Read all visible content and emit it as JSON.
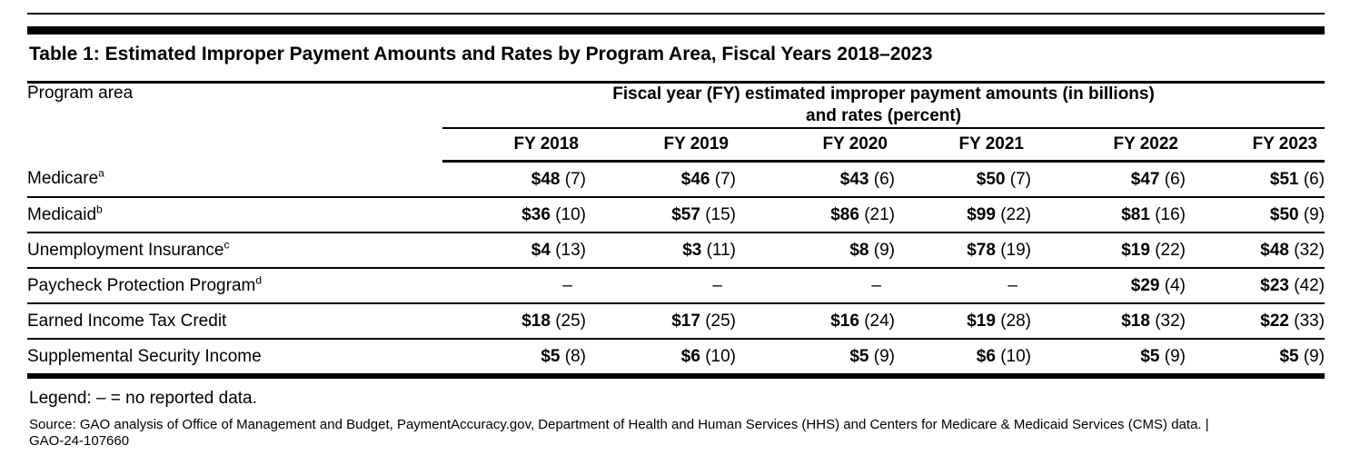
{
  "title": "Table 1: Estimated Improper Payment Amounts and Rates by Program Area, Fiscal Years 2018–2023",
  "colors": {
    "text": "#000000",
    "background": "#ffffff",
    "rules": "#000000"
  },
  "table": {
    "program_col_header": "Program area",
    "span_header_line1": "Fiscal year (FY) estimated improper payment amounts (in billions)",
    "span_header_line2": "and rates (percent)",
    "year_headers": [
      "FY 2018",
      "FY 2019",
      "FY 2020",
      "FY 2021",
      "FY 2022",
      "FY 2023"
    ],
    "no_data_symbol": "–",
    "rows": [
      {
        "program": "Medicare",
        "footnote": "a",
        "values": [
          {
            "amount": "$48",
            "rate": "(7)"
          },
          {
            "amount": "$46",
            "rate": "(7)"
          },
          {
            "amount": "$43",
            "rate": "(6)"
          },
          {
            "amount": "$50",
            "rate": "(7)"
          },
          {
            "amount": "$47",
            "rate": "(6)"
          },
          {
            "amount": "$51",
            "rate": "(6)"
          }
        ]
      },
      {
        "program": "Medicaid",
        "footnote": "b",
        "values": [
          {
            "amount": "$36",
            "rate": "(10)"
          },
          {
            "amount": "$57",
            "rate": "(15)"
          },
          {
            "amount": "$86",
            "rate": "(21)"
          },
          {
            "amount": "$99",
            "rate": "(22)"
          },
          {
            "amount": "$81",
            "rate": "(16)"
          },
          {
            "amount": "$50",
            "rate": "(9)"
          }
        ]
      },
      {
        "program": "Unemployment Insurance",
        "footnote": "c",
        "values": [
          {
            "amount": "$4",
            "rate": "(13)"
          },
          {
            "amount": "$3",
            "rate": "(11)"
          },
          {
            "amount": "$8",
            "rate": "(9)"
          },
          {
            "amount": "$78",
            "rate": "(19)"
          },
          {
            "amount": "$19",
            "rate": "(22)"
          },
          {
            "amount": "$48",
            "rate": "(32)"
          }
        ]
      },
      {
        "program": "Paycheck Protection Program",
        "footnote": "d",
        "values": [
          {
            "dash": "–"
          },
          {
            "dash": "–"
          },
          {
            "dash": "–"
          },
          {
            "dash": "–"
          },
          {
            "amount": "$29",
            "rate": "(4)"
          },
          {
            "amount": "$23",
            "rate": "(42)"
          }
        ]
      },
      {
        "program": "Earned Income Tax Credit",
        "footnote": "",
        "values": [
          {
            "amount": "$18",
            "rate": "(25)"
          },
          {
            "amount": "$17",
            "rate": "(25)"
          },
          {
            "amount": "$16",
            "rate": "(24)"
          },
          {
            "amount": "$19",
            "rate": "(28)"
          },
          {
            "amount": "$18",
            "rate": "(32)"
          },
          {
            "amount": "$22",
            "rate": "(33)"
          }
        ]
      },
      {
        "program": "Supplemental Security Income",
        "footnote": "",
        "values": [
          {
            "amount": "$5",
            "rate": "(8)"
          },
          {
            "amount": "$6",
            "rate": "(10)"
          },
          {
            "amount": "$5",
            "rate": "(9)"
          },
          {
            "amount": "$6",
            "rate": "(10)"
          },
          {
            "amount": "$5",
            "rate": "(9)"
          },
          {
            "amount": "$5",
            "rate": "(9)"
          }
        ]
      }
    ]
  },
  "legend": "Legend: – = no reported data.",
  "source_line1": "Source: GAO analysis of Office of Management and Budget, PaymentAccuracy.gov, Department of Health and Human Services (HHS) and Centers for Medicare & Medicaid Services (CMS) data.  |",
  "source_line2": "GAO-24-107660"
}
